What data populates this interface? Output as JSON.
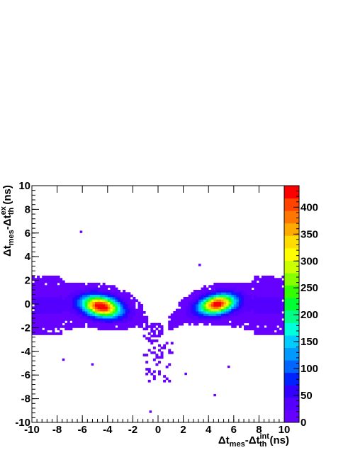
{
  "chart_data": {
    "type": "heatmap",
    "title": "",
    "xlabel": {
      "base": "Δt",
      "sub1": "mes",
      "mid": "-Δt",
      "sup2": "int",
      "sub2": "th",
      "unit": " (ns)"
    },
    "ylabel": {
      "base": "Δt",
      "sub1": "mes",
      "mid": "-Δt",
      "sup2": "ex",
      "sub2": "th",
      "unit": " (ns)"
    },
    "xlim": [
      -10,
      10
    ],
    "ylim": [
      -10,
      10
    ],
    "zlim": [
      0,
      440
    ],
    "x_ticks": [
      "-10",
      "-8",
      "-6",
      "-4",
      "-2",
      "0",
      "2",
      "4",
      "6",
      "8",
      "10"
    ],
    "y_ticks": [
      "-10",
      "-8",
      "-6",
      "-4",
      "-2",
      "0",
      "2",
      "4",
      "6",
      "8",
      "10"
    ],
    "z_ticks": [
      "0",
      "50",
      "100",
      "150",
      "200",
      "250",
      "300",
      "350",
      "400"
    ],
    "grid": false,
    "colorbar": "right",
    "palette": [
      "#6600ff",
      "#5500ff",
      "#3300ff",
      "#0022ff",
      "#0066ff",
      "#0099ff",
      "#00ccff",
      "#00ffdd",
      "#00ff88",
      "#00ff33",
      "#33ff00",
      "#88ff00",
      "#ccff00",
      "#ffff00",
      "#ffdd00",
      "#ffaa00",
      "#ff7700",
      "#ff4400",
      "#ff0000"
    ],
    "bin_width": 0.2,
    "clusters": [
      {
        "name": "left lobe",
        "center": [
          -4.5,
          -0.2
        ],
        "peak": 440
      },
      {
        "name": "right lobe",
        "center": [
          4.7,
          0.0
        ],
        "peak": 420
      },
      {
        "name": "lower tail",
        "center": [
          -0.2,
          -4.5
        ],
        "peak": 12
      }
    ],
    "outliers": [
      [
        -6.1,
        6.1
      ],
      [
        3.3,
        3.3
      ],
      [
        -0.6,
        -9.1
      ],
      [
        4.5,
        -7.7
      ],
      [
        -5.2,
        -5.1
      ],
      [
        5.6,
        -5.3
      ],
      [
        2.2,
        -5.9
      ],
      [
        -7.5,
        -4.7
      ]
    ]
  }
}
